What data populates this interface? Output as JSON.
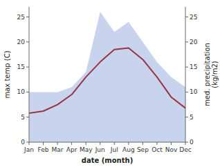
{
  "chart_data": {
    "type": "line",
    "categories": [
      "Jan",
      "Feb",
      "Mar",
      "Apr",
      "May",
      "Jun",
      "Jul",
      "Aug",
      "Sep",
      "Oct",
      "Nov",
      "Dec"
    ],
    "series": [
      {
        "type": "area",
        "color": "#c8d4ee",
        "axis": "y2",
        "values": [
          10,
          10,
          10,
          11,
          14,
          26,
          22,
          24,
          20,
          16,
          13,
          11
        ]
      },
      {
        "type": "line",
        "color": "#993344",
        "values": [
          5.8,
          6.2,
          7.5,
          9.5,
          13.0,
          16.0,
          18.5,
          18.8,
          16.5,
          13.0,
          9.0,
          6.8
        ]
      }
    ],
    "xlabel": "date (month)",
    "ylabel": "max temp (C)",
    "y2label": "med. precipitation\n(kg/m2)",
    "ylim": [
      0,
      27
    ],
    "yticks": [
      0,
      5,
      10,
      15,
      20,
      25
    ],
    "y2lim": [
      0,
      27
    ],
    "y2ticks": [
      0,
      5,
      10,
      15,
      20,
      25
    ],
    "grid": false
  }
}
